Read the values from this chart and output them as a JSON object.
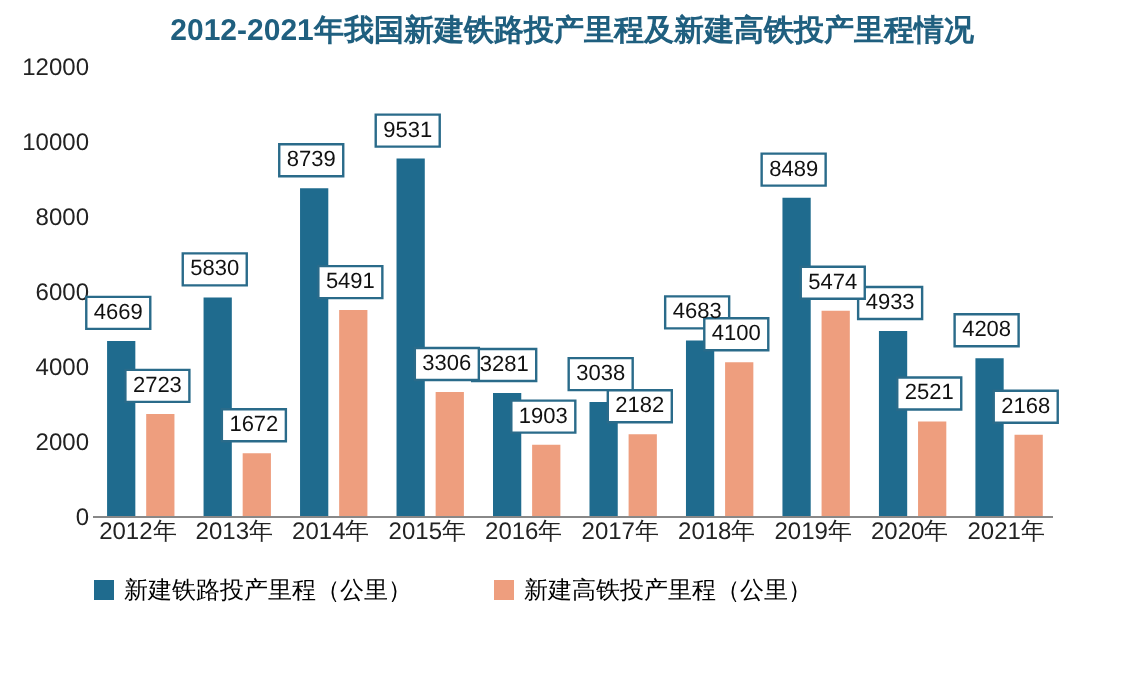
{
  "chart_data": {
    "type": "bar",
    "title": "2012-2021年我国新建铁路投产里程及新建高铁投产里程情况",
    "categories": [
      "2012年",
      "2013年",
      "2014年",
      "2015年",
      "2016年",
      "2017年",
      "2018年",
      "2019年",
      "2020年",
      "2021年"
    ],
    "series": [
      {
        "name": "新建铁路投产里程（公里）",
        "color": "#1f6b8e",
        "values": [
          4669,
          5830,
          8739,
          9531,
          3281,
          3038,
          4683,
          8489,
          4933,
          4208
        ]
      },
      {
        "name": "新建高铁投产里程（公里）",
        "color": "#ee9e7e",
        "values": [
          2723,
          1672,
          5491,
          3306,
          1903,
          2182,
          4100,
          5474,
          2521,
          2168
        ]
      }
    ],
    "ylim": [
      0,
      12000
    ],
    "yticks": [
      0,
      2000,
      4000,
      6000,
      8000,
      10000,
      12000
    ],
    "data_labels": true,
    "legend": "bottom",
    "grid": false
  }
}
